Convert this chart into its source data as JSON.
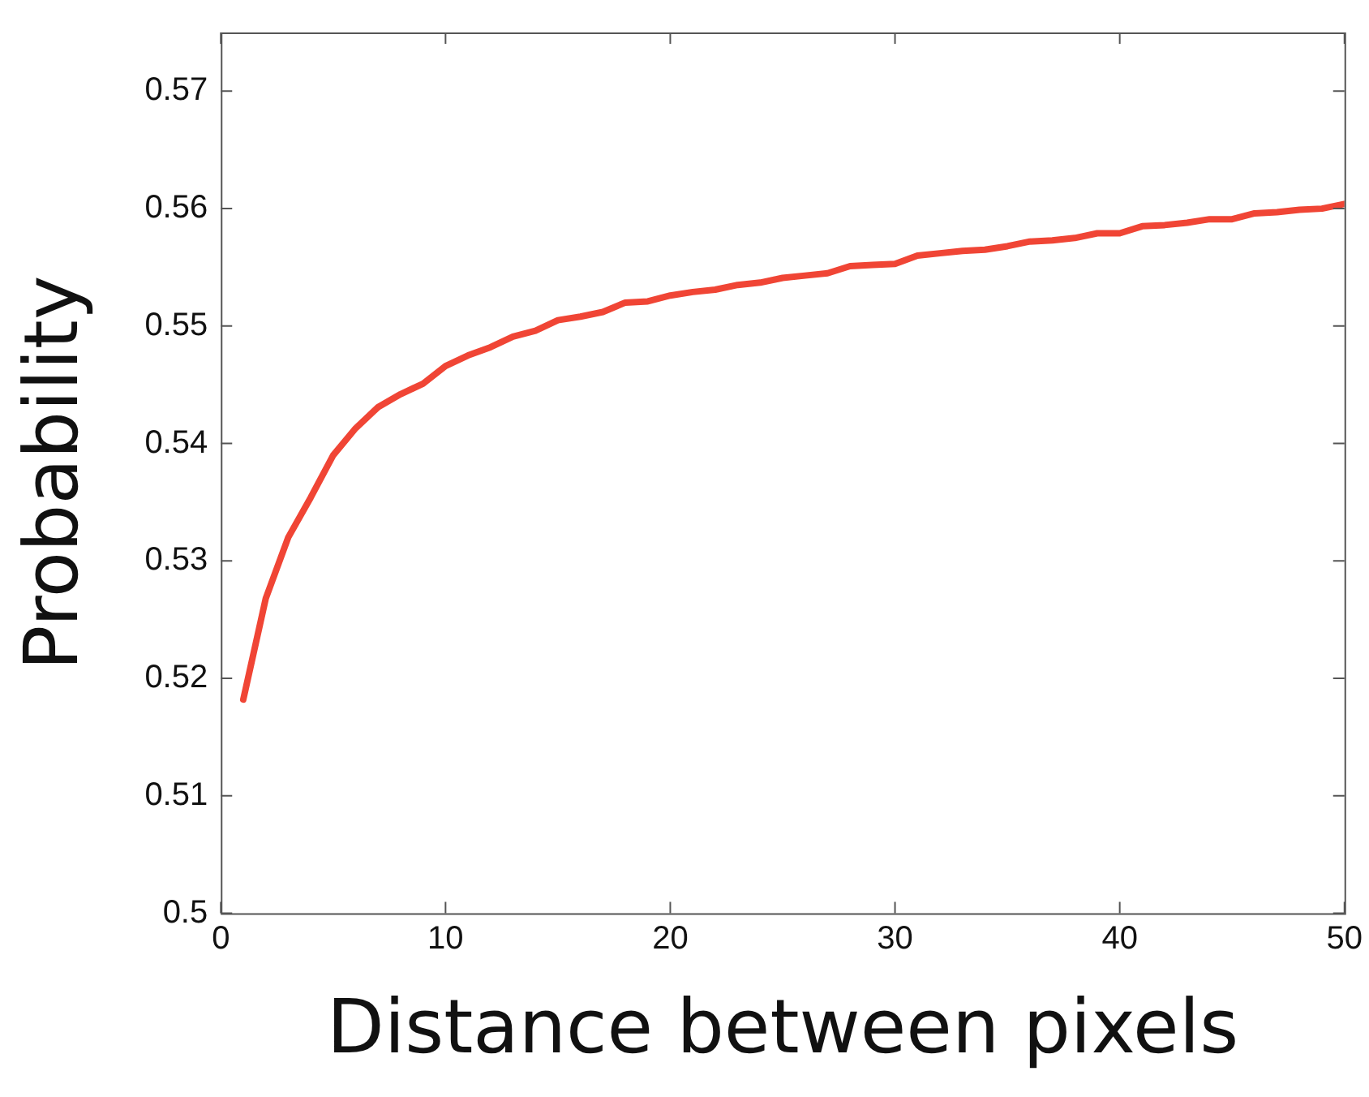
{
  "chart_data": {
    "type": "line",
    "xlabel": "Distance between pixels",
    "ylabel": "Probability",
    "x": [
      1,
      2,
      3,
      4,
      5,
      6,
      7,
      8,
      9,
      10,
      11,
      12,
      13,
      14,
      15,
      16,
      17,
      18,
      19,
      20,
      21,
      22,
      23,
      24,
      25,
      26,
      27,
      28,
      29,
      30,
      31,
      32,
      33,
      34,
      35,
      36,
      37,
      38,
      39,
      40,
      41,
      42,
      43,
      44,
      45,
      46,
      47,
      48,
      49,
      50
    ],
    "series": [
      {
        "color": "#f04535",
        "values": [
          0.5182,
          0.5268,
          0.532,
          0.5354,
          0.539,
          0.5413,
          0.5431,
          0.5442,
          0.5451,
          0.5466,
          0.5475,
          0.5482,
          0.5491,
          0.5496,
          0.5505,
          0.5508,
          0.5512,
          0.552,
          0.5521,
          0.5526,
          0.5529,
          0.5531,
          0.5535,
          0.5537,
          0.5541,
          0.5543,
          0.5545,
          0.5551,
          0.5552,
          0.5553,
          0.556,
          0.5562,
          0.5564,
          0.5565,
          0.5568,
          0.5572,
          0.5573,
          0.5575,
          0.5579,
          0.5579,
          0.5585,
          0.5586,
          0.5588,
          0.5591,
          0.5591,
          0.5596,
          0.5597,
          0.5599,
          0.56,
          0.5604
        ]
      }
    ],
    "xlim": [
      0,
      50
    ],
    "xticks": [
      0,
      10,
      20,
      30,
      40,
      50
    ],
    "ylim": [
      0.5,
      0.575
    ],
    "yticks": [
      0.5,
      0.51,
      0.52,
      0.53,
      0.54,
      0.55,
      0.56,
      0.57
    ],
    "grid": false,
    "legend": false,
    "marker": "none",
    "line_style": "solid"
  }
}
